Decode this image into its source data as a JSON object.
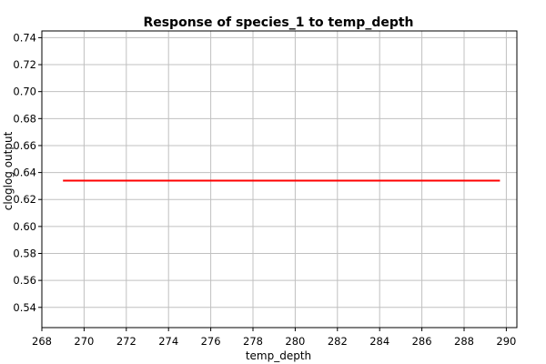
{
  "chart_data": {
    "type": "line",
    "title": "Response of species_1 to temp_depth",
    "xlabel": "temp_depth",
    "ylabel": "cloglog output",
    "xlim": [
      268,
      290.5
    ],
    "ylim": [
      0.525,
      0.745
    ],
    "x_ticks": [
      268,
      270,
      272,
      274,
      276,
      278,
      280,
      282,
      284,
      286,
      288,
      290
    ],
    "y_ticks": [
      0.54,
      0.56,
      0.58,
      0.6,
      0.62,
      0.64,
      0.66,
      0.68,
      0.7,
      0.72,
      0.74
    ],
    "x_tick_labels": [
      "268",
      "270",
      "272",
      "274",
      "276",
      "278",
      "280",
      "282",
      "284",
      "286",
      "288",
      "290"
    ],
    "y_tick_labels": [
      "0.54",
      "0.56",
      "0.58",
      "0.60",
      "0.62",
      "0.64",
      "0.66",
      "0.68",
      "0.70",
      "0.72",
      "0.74"
    ],
    "grid": true,
    "series": [
      {
        "x": [
          269.0,
          289.7
        ],
        "y": [
          0.634,
          0.634
        ],
        "color": "#ff0000"
      }
    ]
  }
}
